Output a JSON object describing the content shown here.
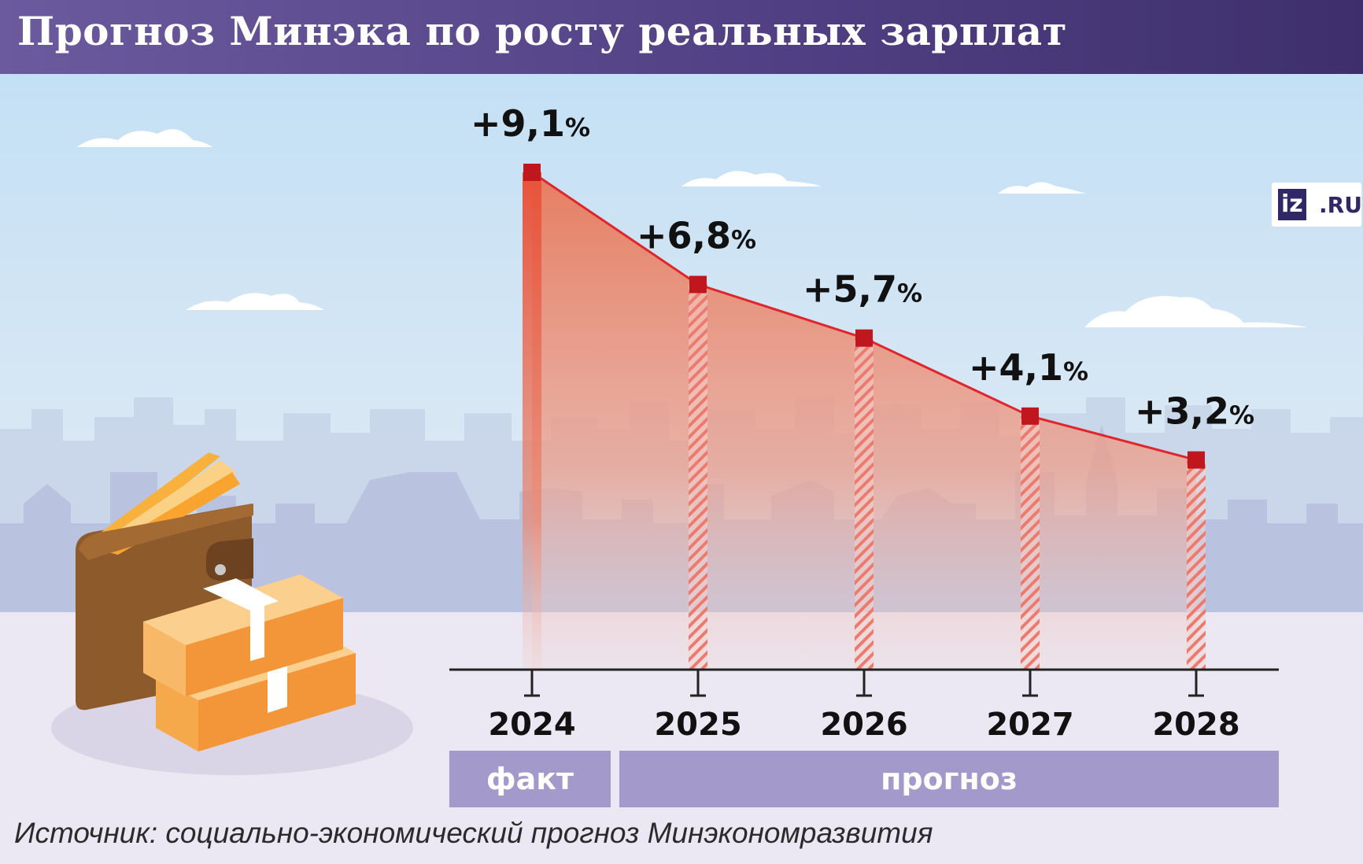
{
  "title": "Прогноз Минэка по росту реальных зарплат",
  "logo": {
    "left": "iz",
    "right": ".RU"
  },
  "source": "Источник: социально-экономический прогноз Минэкономразвития",
  "bands": {
    "fact": "факт",
    "forecast": "прогноз"
  },
  "colors": {
    "line": "#e0262d",
    "marker": "#c0171f",
    "fill_top": "#e8785a",
    "band": "#a399cb",
    "header": "#4f3f82"
  },
  "chart_data": {
    "type": "area",
    "title": "Прогноз Минэка по росту реальных зарплат",
    "categories": [
      "2024",
      "2025",
      "2026",
      "2027",
      "2028"
    ],
    "values": [
      9.1,
      6.8,
      5.7,
      4.1,
      3.2
    ],
    "labels": [
      "+9,1%",
      "+6,8%",
      "+5,7%",
      "+4,1%",
      "+3,2%"
    ],
    "label_parts": [
      {
        "num": "+9,1",
        "pct": "%"
      },
      {
        "num": "+6,8",
        "pct": "%"
      },
      {
        "num": "+5,7",
        "pct": "%"
      },
      {
        "num": "+4,1",
        "pct": "%"
      },
      {
        "num": "+3,2",
        "pct": "%"
      }
    ],
    "status": [
      "факт",
      "прогноз",
      "прогноз",
      "прогноз",
      "прогноз"
    ],
    "ylim": [
      -1.1,
      9.1
    ],
    "xlabel": "",
    "ylabel": ""
  }
}
